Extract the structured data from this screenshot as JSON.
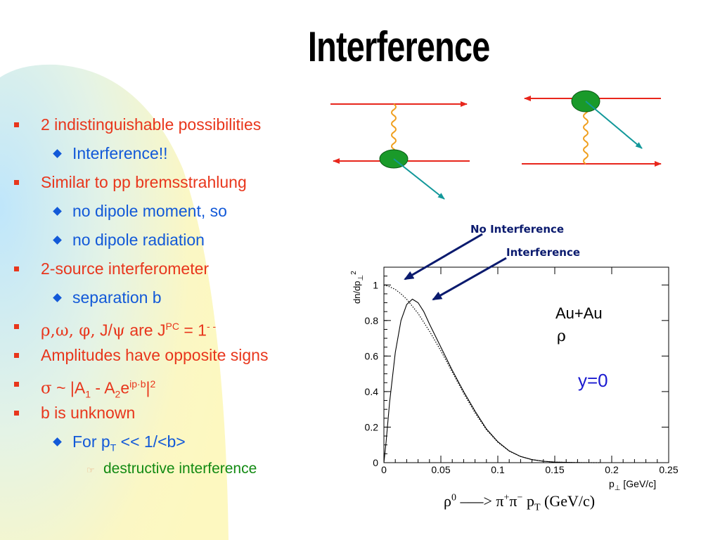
{
  "slide": {
    "title": "Interference"
  },
  "bullets": [
    {
      "level": 1,
      "text": "2 indistinguishable possibilities"
    },
    {
      "level": 2,
      "text": "Interference!!"
    },
    {
      "level": 1,
      "text": "Similar to pp bremsstrahlung"
    },
    {
      "level": 2,
      "text": "no dipole moment, so"
    },
    {
      "level": 2,
      "text": "no dipole radiation"
    },
    {
      "level": 1,
      "text": "2-source interferometer"
    },
    {
      "level": 2,
      "text": "separation b"
    },
    {
      "level": 1,
      "text_parts": {
        "greek": "ρ,ω, φ,",
        "mid": " J/",
        "psi": "ψ",
        "after": " are J",
        "sup1": "PC",
        "after2": " = 1",
        "sup2": "- -"
      }
    },
    {
      "level": 1,
      "text": "Amplitudes have opposite signs"
    },
    {
      "level": 1,
      "text_parts": {
        "sigma": "σ",
        "a": " ~ |A",
        "sub1": "1",
        "b": " - A",
        "sub2": "2",
        "c": "e",
        "sup1": "ip·b",
        "d": "|",
        "sup2": "2"
      }
    },
    {
      "level": 1,
      "text": "b is unknown"
    },
    {
      "level": 2,
      "text_parts": {
        "a": "For p",
        "sub": "T",
        "b": " << 1/<b>"
      }
    },
    {
      "level": 3,
      "text": "destructive interference"
    }
  ],
  "annotations": {
    "no_interference": "No Interference",
    "interference": "Interference"
  },
  "chart_labels": {
    "ylabel": "dn/dp",
    "ylabel_sub": "⊥",
    "ylabel_sup": "2",
    "xlabel": "p",
    "xlabel_sub": "⊥",
    "xlabel_unit": " [GeV/c]",
    "system": "Au+Au",
    "particle": "ρ",
    "rapidity": "y=0"
  },
  "caption": {
    "rho": "ρ",
    "rho_sup": "0",
    "arrow": " –—> ",
    "pi1": "π",
    "pi1_sup": "+",
    "pi2": "π",
    "pi2_sup": "−",
    "pt": " p",
    "pt_sub": "T",
    "unit": " (GeV/c)"
  },
  "colors": {
    "bullet_l1": "#e8361c",
    "bullet_l2": "#1259d8",
    "bullet_l3": "#128a12",
    "beam": "#e8261c",
    "photon": "#f0a020",
    "nucleus": "#1a9a2a",
    "pion": "#12989a",
    "arrow": "#0a1a6e",
    "rapidity": "#1a1ad0"
  },
  "chart_data": {
    "type": "line",
    "xlabel": "p⊥ [GeV/c]",
    "ylabel": "dn/dp⊥²",
    "xlim": [
      0,
      0.25
    ],
    "ylim": [
      0,
      1.1
    ],
    "xticks": [
      "0",
      "0.05",
      "0.1",
      "0.15",
      "0.2",
      "0.25"
    ],
    "yticks": [
      "0",
      "0.2",
      "0.4",
      "0.6",
      "0.8",
      "1"
    ],
    "series": [
      {
        "name": "No Interference",
        "style": "dotted",
        "x": [
          0,
          0.005,
          0.01,
          0.015,
          0.02,
          0.025,
          0.03,
          0.035,
          0.04,
          0.05,
          0.06,
          0.07,
          0.08,
          0.09,
          0.1,
          0.11,
          0.12,
          0.13,
          0.14,
          0.15,
          0.17,
          0.19
        ],
        "y": [
          1.0,
          0.99,
          0.975,
          0.95,
          0.92,
          0.88,
          0.84,
          0.79,
          0.74,
          0.63,
          0.51,
          0.39,
          0.28,
          0.185,
          0.115,
          0.065,
          0.035,
          0.017,
          0.008,
          0.003,
          0.0005,
          0
        ]
      },
      {
        "name": "Interference",
        "style": "solid",
        "x": [
          0,
          0.002,
          0.005,
          0.01,
          0.015,
          0.02,
          0.025,
          0.03,
          0.035,
          0.04,
          0.05,
          0.06,
          0.07,
          0.08,
          0.09,
          0.1,
          0.11,
          0.12,
          0.13,
          0.14,
          0.15,
          0.17,
          0.19
        ],
        "y": [
          0,
          0.12,
          0.34,
          0.62,
          0.8,
          0.89,
          0.92,
          0.9,
          0.85,
          0.78,
          0.65,
          0.52,
          0.4,
          0.29,
          0.19,
          0.118,
          0.066,
          0.035,
          0.017,
          0.008,
          0.003,
          0.0005,
          0
        ]
      }
    ]
  }
}
